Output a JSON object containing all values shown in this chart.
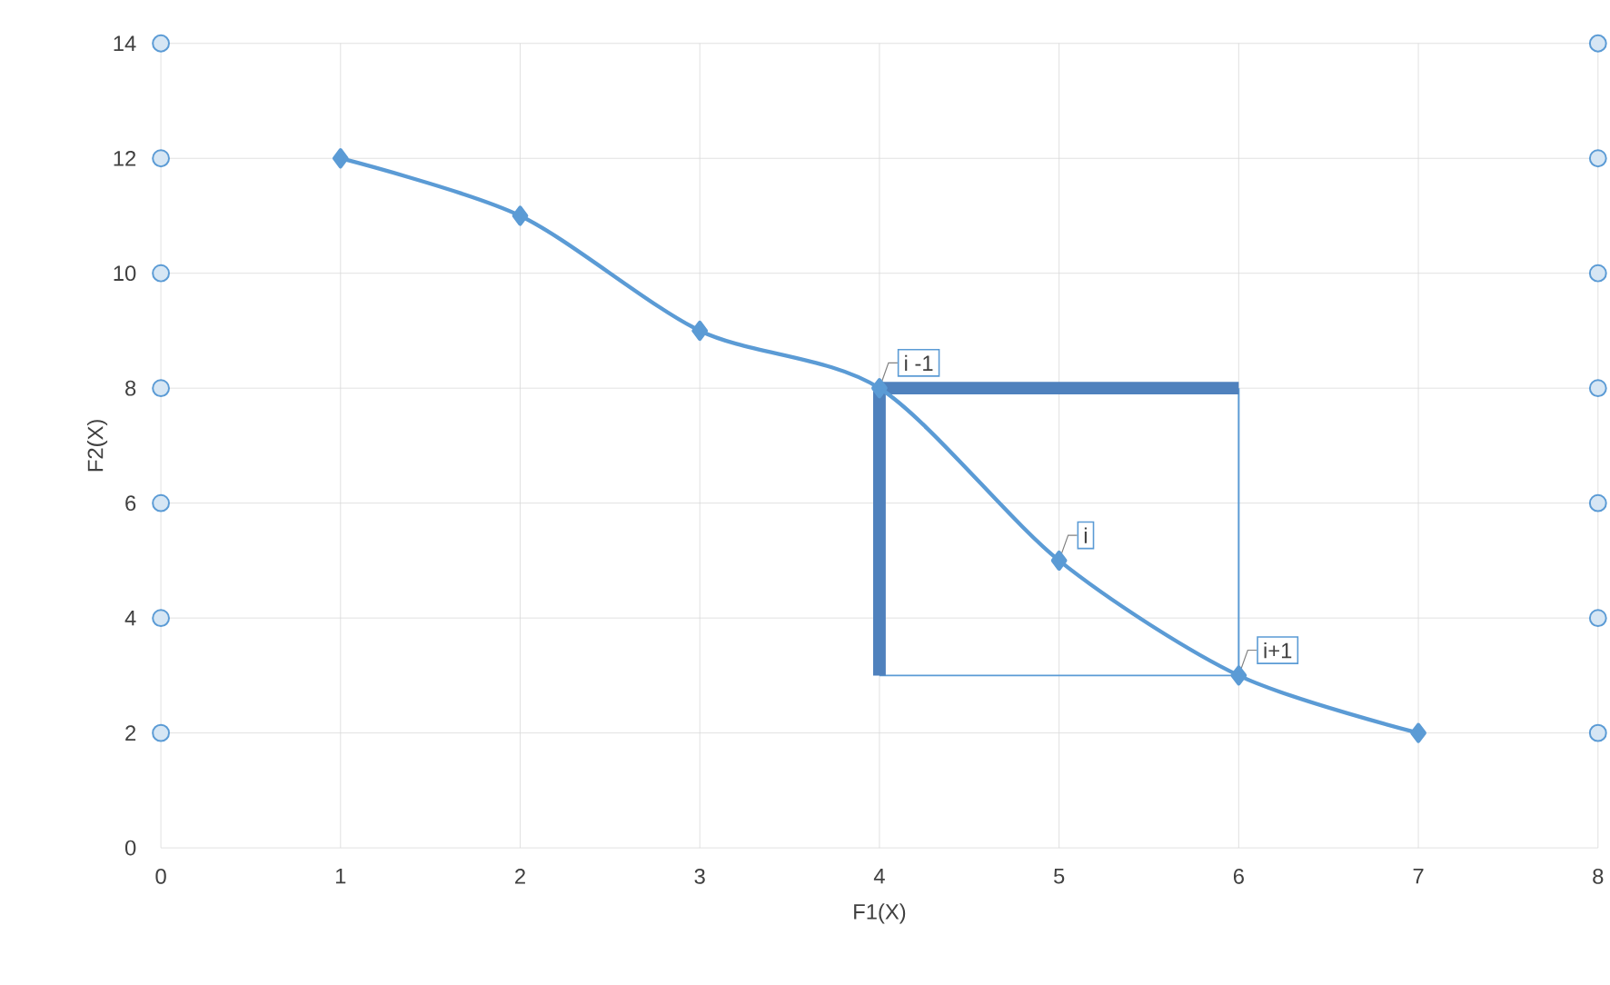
{
  "chart_data": {
    "type": "line",
    "xlabel": "F1(X)",
    "ylabel": "F2(X)",
    "xlim": [
      0,
      8
    ],
    "ylim": [
      0,
      14
    ],
    "xticks": [
      0,
      1,
      2,
      3,
      4,
      5,
      6,
      7,
      8
    ],
    "yticks": [
      0,
      2,
      4,
      6,
      8,
      10,
      12,
      14
    ],
    "grid": true,
    "series": [
      {
        "color": "#5b9bd5",
        "marker": "diamond",
        "x": [
          1,
          2,
          3,
          4,
          5,
          6,
          7
        ],
        "values": [
          12,
          11,
          9,
          8,
          5,
          3,
          2
        ]
      },
      {
        "type": "scatter",
        "color": "#5b9bd5",
        "marker": "circle",
        "x": [
          0,
          0,
          0,
          0,
          0,
          0,
          0,
          8,
          8,
          8,
          8,
          8,
          8,
          8
        ],
        "values": [
          2,
          4,
          6,
          8,
          10,
          12,
          14,
          2,
          4,
          6,
          8,
          10,
          12,
          14
        ]
      },
      {
        "color": "#5b9bd5",
        "marker": "none",
        "x": [
          6,
          6,
          4
        ],
        "values": [
          8,
          3,
          3
        ]
      },
      {
        "color": "#4f81bd",
        "marker": "none",
        "x": [
          4,
          4
        ],
        "values": [
          3,
          8
        ]
      },
      {
        "color": "#4f81bd",
        "marker": "none",
        "x": [
          4,
          6
        ],
        "values": [
          8,
          8
        ]
      }
    ],
    "annotations": [
      {
        "text": "i -1",
        "x": 4,
        "y": 8
      },
      {
        "text": "i",
        "x": 5,
        "y": 5
      },
      {
        "text": "i+1",
        "x": 6,
        "y": 3
      }
    ]
  }
}
